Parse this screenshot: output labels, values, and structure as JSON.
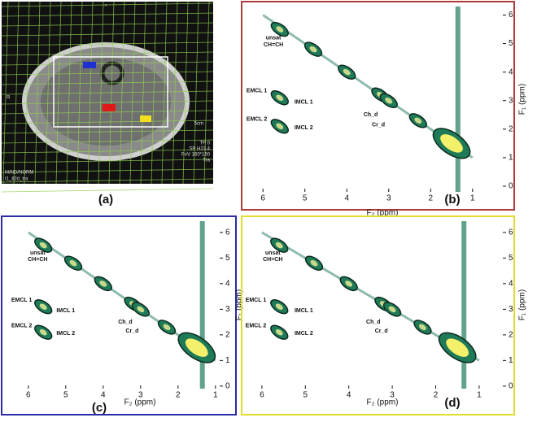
{
  "mri": {
    "label": "(a)",
    "texts": [
      "^",
      "TP 0",
      "SP H23.4",
      "FoV 160*160",
      "Tra",
      "M/ND/NORM",
      "t1_tl2d_tra",
      "5cm",
      "R"
    ]
  },
  "chart_data": [
    {
      "type": "contour",
      "panel_label": "(b)",
      "border_color": "#b03a3a",
      "color": "#1f7a58",
      "peak_color": "#f4f06a",
      "xlabel": "F₂ (ppm)",
      "ylabel": "F₁ (ppm)",
      "xlim": [
        6.45,
        0.2
      ],
      "ylim": [
        -0.2,
        6.3
      ],
      "xticks": [
        6,
        5,
        4,
        3,
        2,
        1
      ],
      "yticks": [
        0,
        1,
        2,
        3,
        4,
        5,
        6
      ],
      "x": [
        5.6,
        4.8,
        4.0,
        3.2,
        3.0,
        2.3,
        1.5,
        5.6,
        5.6
      ],
      "y": [
        5.5,
        4.8,
        4.0,
        3.2,
        3.0,
        2.3,
        1.5,
        3.1,
        2.1
      ],
      "annotations": [
        "unsat",
        "CH=CH",
        "EMCL 1",
        "IMCL 1",
        "EMCL 2",
        "IMCL 2",
        "Ch_d",
        "Cr_d"
      ]
    },
    {
      "type": "contour",
      "panel_label": "(c)",
      "border_color": "#2a2aa8",
      "color": "#1f7a58",
      "peak_color": "#f4f06a",
      "xlabel": "F₂ (ppm)",
      "ylabel": "F₁ (ppm)",
      "xlim": [
        6.67,
        0.8
      ],
      "ylim": [
        -0.1,
        6.44
      ],
      "xticks": [
        6,
        5,
        4,
        3,
        2,
        1
      ],
      "yticks": [
        0,
        1,
        2,
        3,
        4,
        5,
        6
      ],
      "x": [
        5.6,
        4.8,
        4.0,
        3.2,
        3.0,
        2.3,
        1.5,
        5.6,
        5.6
      ],
      "y": [
        5.5,
        4.8,
        4.0,
        3.2,
        3.0,
        2.3,
        1.5,
        3.1,
        2.1
      ],
      "annotations": [
        "unsat",
        "CH=CH",
        "EMCL 1",
        "IMCL 1",
        "EMCL 2",
        "IMCL 2",
        "Ch_d",
        "Cr_d"
      ]
    },
    {
      "type": "contour",
      "panel_label": "(d)",
      "border_color": "#e2dc2a",
      "color": "#1f7a58",
      "peak_color": "#f4f06a",
      "xlabel": "F₂ (ppm)",
      "ylabel": "F₁ (ppm)",
      "xlim": [
        6.41,
        0.38
      ],
      "ylim": [
        -0.1,
        6.44
      ],
      "xticks": [
        6,
        5,
        4,
        3,
        2,
        1
      ],
      "yticks": [
        0,
        1,
        2,
        3,
        4,
        5,
        6
      ],
      "x": [
        5.6,
        4.8,
        4.0,
        3.2,
        3.0,
        2.3,
        1.5,
        5.6,
        5.6
      ],
      "y": [
        5.5,
        4.8,
        4.0,
        3.2,
        3.0,
        2.3,
        1.5,
        3.1,
        2.1
      ],
      "annotations": [
        "unsat",
        "CH=CH",
        "EMCL 1",
        "IMCL 1",
        "EMCL 2",
        "IMCL 2",
        "Ch_d",
        "Cr_d"
      ]
    }
  ]
}
